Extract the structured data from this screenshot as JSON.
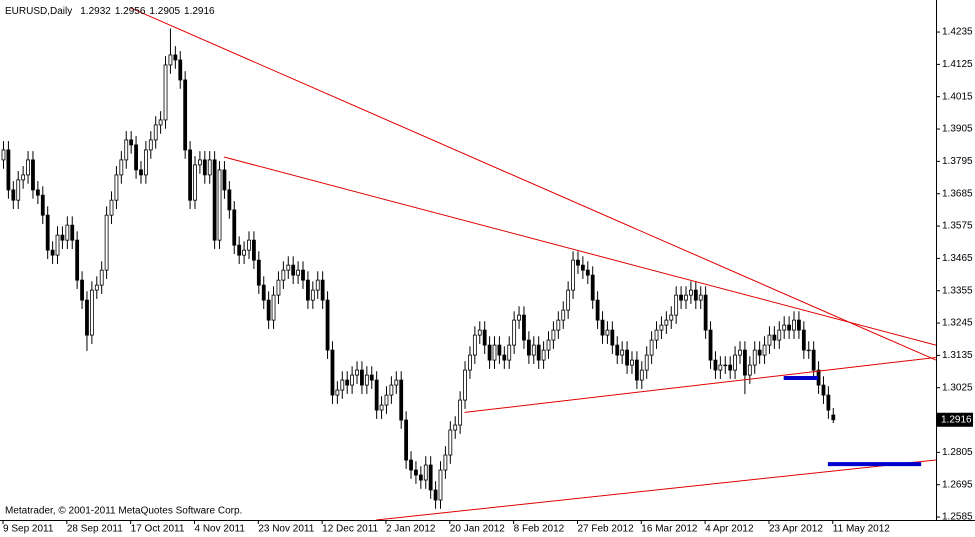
{
  "chart_data": {
    "type": "candlestick",
    "symbol": "EURUSD,Daily",
    "footer": "Metatrader, © 2001-2011 MetaQuotes Software Corp.",
    "up_color": "#ffffff",
    "down_color": "#000000",
    "edge_color": "#000000",
    "grid": false,
    "categories": [
      "9 Sep 2011",
      null,
      null,
      null,
      null,
      null,
      null,
      null,
      null,
      null,
      null,
      null,
      null,
      "28 Sep 2011",
      null,
      null,
      null,
      null,
      null,
      null,
      null,
      null,
      null,
      null,
      null,
      null,
      "17 Oct 2011",
      null,
      null,
      null,
      null,
      null,
      null,
      null,
      null,
      null,
      null,
      null,
      null,
      "4 Nov 2011",
      null,
      null,
      null,
      null,
      null,
      null,
      null,
      null,
      null,
      null,
      null,
      null,
      "23 Nov 2011",
      null,
      null,
      null,
      null,
      null,
      null,
      null,
      null,
      null,
      null,
      null,
      null,
      "12 Dec 2011",
      null,
      null,
      null,
      null,
      null,
      null,
      null,
      null,
      null,
      null,
      null,
      null,
      "2 Jan 2012",
      null,
      null,
      null,
      null,
      null,
      null,
      null,
      null,
      null,
      null,
      null,
      null,
      "20 Jan 2012",
      null,
      null,
      null,
      null,
      null,
      null,
      null,
      null,
      null,
      null,
      null,
      null,
      "8 Feb 2012",
      null,
      null,
      null,
      null,
      null,
      null,
      null,
      null,
      null,
      null,
      null,
      null,
      "27 Feb 2012",
      null,
      null,
      null,
      null,
      null,
      null,
      null,
      null,
      null,
      null,
      null,
      null,
      "16 Mar 2012",
      null,
      null,
      null,
      null,
      null,
      null,
      null,
      null,
      null,
      null,
      null,
      null,
      "4 Apr 2012",
      null,
      null,
      null,
      null,
      null,
      null,
      null,
      null,
      null,
      null,
      null,
      null,
      "23 Apr 2012",
      null,
      null,
      null,
      null,
      null,
      null,
      null,
      null,
      null,
      null,
      null,
      null,
      "11 May 2012"
    ],
    "open": [
      1.38,
      1.3834,
      1.3698,
      1.3663,
      1.3732,
      1.3749,
      1.38,
      1.3698,
      1.368,
      1.3612,
      1.3493,
      1.3476,
      1.3544,
      1.3527,
      1.3578,
      1.3527,
      1.3391,
      1.3323,
      1.3204,
      1.3357,
      1.3374,
      1.3425,
      1.3612,
      1.3663,
      1.3749,
      1.38,
      1.3868,
      1.3851,
      1.3766,
      1.3749,
      1.3834,
      1.3868,
      1.3919,
      1.3936,
      1.4123,
      1.4157,
      1.414,
      1.4072,
      1.3834,
      1.3663,
      1.3783,
      1.38,
      1.3749,
      1.38,
      1.3527,
      1.3766,
      1.3698,
      1.363,
      1.351,
      1.3476,
      1.3493,
      1.3527,
      1.3459,
      1.3374,
      1.3323,
      1.3255,
      1.334,
      1.3391,
      1.3425,
      1.3442,
      1.3408,
      1.3425,
      1.3391,
      1.3323,
      1.3357,
      1.3391,
      1.3323,
      1.3153,
      1.3,
      1.3017,
      1.3051,
      1.3034,
      1.3068,
      1.3085,
      1.3034,
      1.3068,
      1.3051,
      1.2949,
      1.2966,
      1.3,
      1.3034,
      1.3051,
      1.2915,
      1.2779,
      1.2745,
      1.2728,
      1.2711,
      1.2762,
      1.2677,
      1.2643,
      1.2745,
      1.2796,
      1.2881,
      1.2898,
      1.2983,
      1.3085,
      1.3136,
      1.3204,
      1.3221,
      1.317,
      1.3119,
      1.317,
      1.3136,
      1.3119,
      1.317,
      1.3255,
      1.3272,
      1.3187,
      1.3136,
      1.317,
      1.3119,
      1.3153,
      1.3187,
      1.3221,
      1.3255,
      1.3289,
      1.3357,
      1.3459,
      1.3442,
      1.3425,
      1.3408,
      1.3323,
      1.3255,
      1.3204,
      1.3221,
      1.317,
      1.3136,
      1.3153,
      1.3102,
      1.3119,
      1.3051,
      1.3085,
      1.3136,
      1.3187,
      1.3221,
      1.3238,
      1.3255,
      1.3272,
      1.334,
      1.3323,
      1.334,
      1.3357,
      1.3323,
      1.334,
      1.3221,
      1.3119,
      1.3085,
      1.3102,
      1.3102,
      1.3085,
      1.3136,
      1.3153,
      1.3068,
      1.3102,
      1.3153,
      1.3136,
      1.317,
      1.3204,
      1.3187,
      1.3221,
      1.3238,
      1.3221,
      1.3255,
      1.3221,
      1.3153,
      1.3153,
      1.3085,
      1.3034,
      1.3,
      1.2932
    ],
    "high": [
      1.3864,
      1.3864,
      1.3728,
      1.3762,
      1.3779,
      1.383,
      1.383,
      1.3728,
      1.371,
      1.3642,
      1.3523,
      1.3574,
      1.3574,
      1.3608,
      1.3608,
      1.3557,
      1.3421,
      1.3353,
      1.3387,
      1.3404,
      1.3455,
      1.3642,
      1.3693,
      1.3779,
      1.383,
      1.3898,
      1.3898,
      1.3881,
      1.3796,
      1.3864,
      1.3898,
      1.3949,
      1.3966,
      1.4153,
      1.4247,
      1.4187,
      1.417,
      1.4102,
      1.3864,
      1.3813,
      1.383,
      1.383,
      1.383,
      1.383,
      1.3796,
      1.3796,
      1.3728,
      1.366,
      1.354,
      1.3523,
      1.3557,
      1.3557,
      1.3489,
      1.3404,
      1.3353,
      1.337,
      1.3421,
      1.3455,
      1.3472,
      1.3472,
      1.3455,
      1.3455,
      1.3421,
      1.3387,
      1.3421,
      1.3421,
      1.3353,
      1.3183,
      1.3047,
      1.3081,
      1.3081,
      1.3098,
      1.3115,
      1.3115,
      1.3098,
      1.3098,
      1.3081,
      1.2996,
      1.303,
      1.3064,
      1.3081,
      1.3081,
      1.2945,
      1.2809,
      1.2775,
      1.2758,
      1.2792,
      1.2792,
      1.2707,
      1.2775,
      1.2826,
      1.2911,
      1.2928,
      1.3013,
      1.3115,
      1.3166,
      1.3234,
      1.3251,
      1.3251,
      1.32,
      1.32,
      1.32,
      1.3166,
      1.32,
      1.3285,
      1.3302,
      1.3302,
      1.3217,
      1.32,
      1.32,
      1.3183,
      1.3217,
      1.3251,
      1.3285,
      1.3319,
      1.3387,
      1.3489,
      1.3489,
      1.3472,
      1.3455,
      1.3438,
      1.3353,
      1.3285,
      1.3251,
      1.3251,
      1.32,
      1.3183,
      1.3183,
      1.3149,
      1.3149,
      1.3115,
      1.3166,
      1.3217,
      1.3251,
      1.3268,
      1.3285,
      1.3302,
      1.337,
      1.337,
      1.337,
      1.3387,
      1.3387,
      1.337,
      1.337,
      1.3251,
      1.3149,
      1.3132,
      1.3132,
      1.3132,
      1.3166,
      1.3183,
      1.3183,
      1.3132,
      1.3183,
      1.3183,
      1.32,
      1.3234,
      1.3234,
      1.3251,
      1.3268,
      1.3268,
      1.3285,
      1.3285,
      1.3251,
      1.3183,
      1.3183,
      1.3115,
      1.3064,
      1.303,
      1.2956
    ],
    "low": [
      1.377,
      1.3668,
      1.3633,
      1.3633,
      1.3702,
      1.3719,
      1.3668,
      1.365,
      1.3582,
      1.3463,
      1.3446,
      1.3446,
      1.3497,
      1.3497,
      1.3497,
      1.3361,
      1.3293,
      1.315,
      1.3174,
      1.3327,
      1.3344,
      1.3395,
      1.3582,
      1.3633,
      1.3719,
      1.377,
      1.3821,
      1.3736,
      1.3719,
      1.3719,
      1.3804,
      1.3838,
      1.3889,
      1.3906,
      1.4093,
      1.411,
      1.4042,
      1.3804,
      1.3633,
      1.3633,
      1.3753,
      1.3719,
      1.3719,
      1.3497,
      1.3497,
      1.3668,
      1.36,
      1.348,
      1.3446,
      1.3446,
      1.3463,
      1.3429,
      1.3344,
      1.3293,
      1.3225,
      1.3225,
      1.331,
      1.3361,
      1.3395,
      1.3378,
      1.3378,
      1.3361,
      1.3293,
      1.3293,
      1.3327,
      1.3293,
      1.3123,
      1.297,
      1.297,
      1.2987,
      1.3004,
      1.3004,
      1.3038,
      1.3004,
      1.3004,
      1.3021,
      1.2919,
      1.2919,
      1.2936,
      1.297,
      1.3004,
      1.2885,
      1.2749,
      1.2715,
      1.2698,
      1.2681,
      1.2681,
      1.2647,
      1.2613,
      1.2613,
      1.2715,
      1.2766,
      1.2851,
      1.2868,
      1.2953,
      1.3055,
      1.3106,
      1.3174,
      1.314,
      1.3089,
      1.3089,
      1.3106,
      1.3089,
      1.3089,
      1.314,
      1.3225,
      1.3157,
      1.3106,
      1.3106,
      1.3089,
      1.3089,
      1.3123,
      1.3157,
      1.3191,
      1.3225,
      1.3259,
      1.3327,
      1.3412,
      1.3395,
      1.3378,
      1.3293,
      1.3225,
      1.3174,
      1.3174,
      1.314,
      1.3106,
      1.3106,
      1.3072,
      1.3072,
      1.3021,
      1.3021,
      1.3055,
      1.3106,
      1.3157,
      1.3191,
      1.3208,
      1.3225,
      1.3242,
      1.3293,
      1.3293,
      1.331,
      1.3293,
      1.3293,
      1.3191,
      1.3089,
      1.3055,
      1.3055,
      1.3072,
      1.3055,
      1.3055,
      1.3106,
      1.3003,
      1.3038,
      1.3072,
      1.3106,
      1.3106,
      1.314,
      1.3157,
      1.3157,
      1.3191,
      1.3191,
      1.3191,
      1.3191,
      1.3123,
      1.3123,
      1.3055,
      1.3004,
      1.297,
      1.2919,
      1.2905
    ],
    "close": [
      1.3834,
      1.3698,
      1.3663,
      1.3732,
      1.3749,
      1.38,
      1.3698,
      1.368,
      1.3612,
      1.3493,
      1.3476,
      1.3544,
      1.3527,
      1.3578,
      1.3527,
      1.3391,
      1.3323,
      1.3204,
      1.3357,
      1.3374,
      1.3425,
      1.3612,
      1.3663,
      1.3749,
      1.38,
      1.3868,
      1.3851,
      1.3766,
      1.3749,
      1.3834,
      1.3868,
      1.3919,
      1.3936,
      1.4123,
      1.4157,
      1.414,
      1.4072,
      1.3834,
      1.3663,
      1.3783,
      1.38,
      1.3749,
      1.38,
      1.3527,
      1.3766,
      1.3698,
      1.363,
      1.351,
      1.3476,
      1.3493,
      1.3527,
      1.3459,
      1.3374,
      1.3323,
      1.3255,
      1.334,
      1.3391,
      1.3425,
      1.3442,
      1.3408,
      1.3425,
      1.3391,
      1.3323,
      1.3357,
      1.3391,
      1.3323,
      1.3153,
      1.3,
      1.3017,
      1.3051,
      1.3034,
      1.3068,
      1.3085,
      1.3034,
      1.3068,
      1.3051,
      1.2949,
      1.2966,
      1.3,
      1.3034,
      1.3051,
      1.2915,
      1.2779,
      1.2745,
      1.2728,
      1.2711,
      1.2762,
      1.2677,
      1.2643,
      1.2745,
      1.2796,
      1.2881,
      1.2898,
      1.2983,
      1.3085,
      1.3136,
      1.3204,
      1.3221,
      1.317,
      1.3119,
      1.317,
      1.3136,
      1.3119,
      1.317,
      1.3255,
      1.3272,
      1.3187,
      1.3136,
      1.317,
      1.3119,
      1.3153,
      1.3187,
      1.3221,
      1.3255,
      1.3289,
      1.3357,
      1.3459,
      1.3442,
      1.3425,
      1.3408,
      1.3323,
      1.3255,
      1.3204,
      1.3221,
      1.317,
      1.3136,
      1.3153,
      1.3102,
      1.3119,
      1.3051,
      1.3085,
      1.3136,
      1.3187,
      1.3221,
      1.3238,
      1.3255,
      1.3272,
      1.334,
      1.3323,
      1.334,
      1.3357,
      1.3323,
      1.334,
      1.3221,
      1.3119,
      1.3085,
      1.3102,
      1.3102,
      1.3085,
      1.3136,
      1.3153,
      1.3068,
      1.3102,
      1.3153,
      1.3136,
      1.317,
      1.3204,
      1.3187,
      1.3221,
      1.3238,
      1.3221,
      1.3255,
      1.3221,
      1.3153,
      1.3153,
      1.3085,
      1.3034,
      1.3,
      1.2949,
      1.2916
    ],
    "ylim": [
      1.2575,
      1.4344
    ],
    "yticks": [
      1.4235,
      1.4125,
      1.4015,
      1.3905,
      1.3795,
      1.3685,
      1.3575,
      1.3465,
      1.3355,
      1.3245,
      1.3135,
      1.3025,
      1.2805,
      1.2695,
      1.2585
    ],
    "trendlines": [
      {
        "color": "#e00000",
        "width": 1,
        "from": [
          26,
          1.4317
        ],
        "to": [
          190,
          1.3119
        ]
      },
      {
        "color": "#e00000",
        "width": 1,
        "from": [
          45,
          1.381
        ],
        "to": [
          190,
          1.317
        ]
      },
      {
        "color": "#e00000",
        "width": 1,
        "from": [
          94,
          1.2941
        ],
        "to": [
          190,
          1.3128
        ]
      },
      {
        "color": "#e00000",
        "width": 1,
        "from": [
          76,
          1.2575
        ],
        "to": [
          190,
          1.2779
        ]
      },
      {
        "color": "#0000cc",
        "width": 4,
        "from": [
          159,
          1.3058
        ],
        "to": [
          166,
          1.3058
        ]
      },
      {
        "color": "#0000cc",
        "width": 4,
        "from": [
          168,
          1.2765
        ],
        "to": [
          187,
          1.2765
        ]
      }
    ]
  }
}
